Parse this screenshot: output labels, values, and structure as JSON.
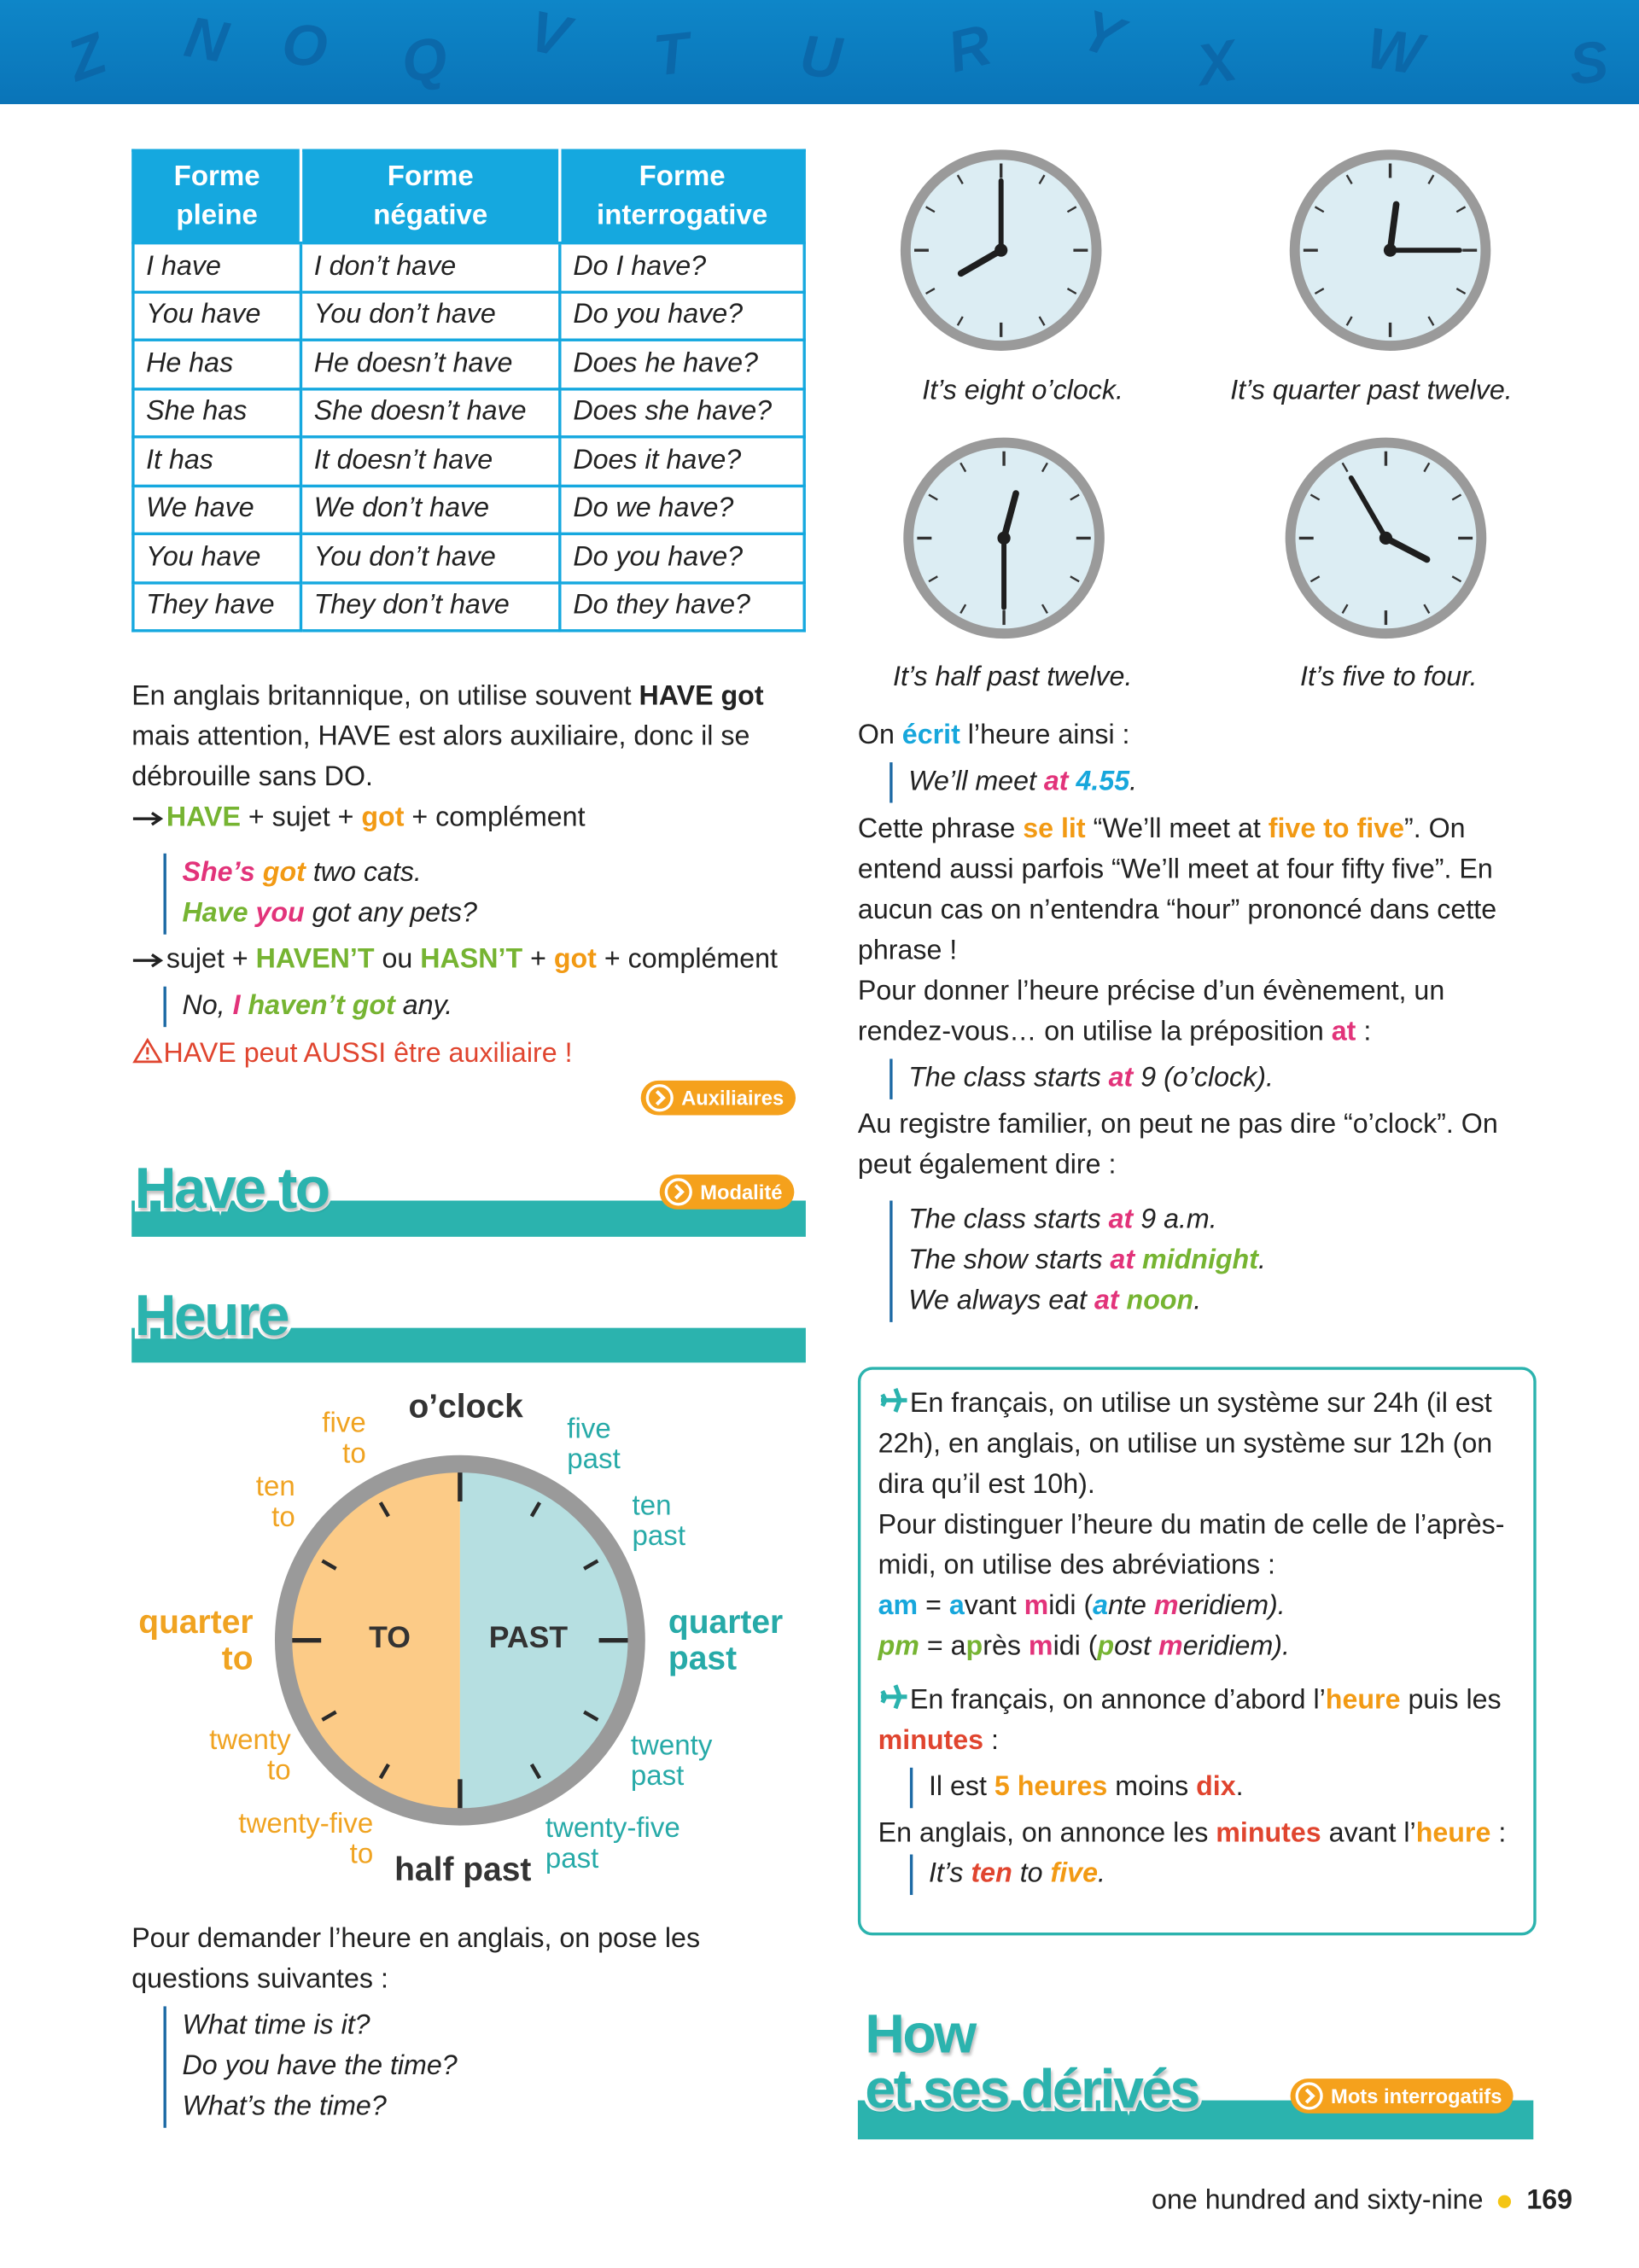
{
  "header_letters": [
    "Z",
    "N",
    "O",
    "Q",
    "V",
    "T",
    "U",
    "R",
    "Y",
    "X",
    "W",
    "S"
  ],
  "table": {
    "headers": [
      [
        "Forme",
        "pleine"
      ],
      [
        "Forme",
        "négative"
      ],
      [
        "Forme",
        "interrogative"
      ]
    ],
    "rows": [
      [
        "I have",
        "I don’t have",
        "Do I have?"
      ],
      [
        "You have",
        "You don’t have",
        "Do you have?"
      ],
      [
        "He has",
        "He doesn’t have",
        "Does he have?"
      ],
      [
        "She has",
        "She doesn’t have",
        "Does she have?"
      ],
      [
        "It has",
        "It doesn’t have",
        "Does it have?"
      ],
      [
        "We have",
        "We don’t have",
        "Do we have?"
      ],
      [
        "You have",
        "You don’t have",
        "Do you have?"
      ],
      [
        "They have",
        "They don’t have",
        "Do they have?"
      ]
    ]
  },
  "have_got": {
    "intro": [
      "En anglais britannique, on utilise souvent ",
      "HAVE got",
      " mais attention, HAVE est alors auxiliaire, donc il se débrouille sans DO."
    ],
    "rule_affirmative": [
      "HAVE",
      " + sujet + ",
      "got",
      " + complément"
    ],
    "examples_affirmative": [
      [
        "She’s ",
        "got",
        " two cats."
      ],
      [
        "Have ",
        "you",
        " got any pets?"
      ]
    ],
    "rule_negative": [
      "sujet + ",
      "HAVEN’T",
      " ou ",
      "HASN’T",
      " + ",
      "got",
      " + complément"
    ],
    "example_negative": [
      "No, ",
      "I ",
      "haven’t got",
      " any."
    ],
    "warning": "HAVE peut AUSSI être auxiliaire !",
    "link": "Auxiliaires"
  },
  "have_to": {
    "title": "Have to",
    "link": "Modalité"
  },
  "heure": {
    "title": "Heure",
    "diagram": {
      "top": "o’clock",
      "bottom": "half past",
      "left_half": "TO",
      "right_half": "PAST",
      "five_to": [
        "five",
        "to"
      ],
      "ten_to": [
        "ten",
        "to"
      ],
      "quarter_to": [
        "quarter",
        "to"
      ],
      "twenty_to": [
        "twenty",
        "to"
      ],
      "twenty_five_to": [
        "twenty-five",
        "to"
      ],
      "five_past": [
        "five",
        "past"
      ],
      "ten_past": [
        "ten",
        "past"
      ],
      "quarter_past": [
        "quarter",
        "past"
      ],
      "twenty_past": [
        "twenty",
        "past"
      ],
      "twenty_five_past": [
        "twenty-five",
        "past"
      ]
    },
    "questions_intro": "Pour demander l’heure en anglais, on pose les questions suivantes :",
    "questions": [
      "What time is it?",
      "Do you have the time?",
      "What’s the time?"
    ]
  },
  "clocks": {
    "captions": [
      "It’s eight o’clock.",
      "It’s quarter past twelve.",
      "It’s half past twelve.",
      "It’s five to four."
    ]
  },
  "writing": {
    "intro": [
      "On ",
      "écrit",
      " l’heure ainsi :"
    ],
    "example": [
      "We’ll meet ",
      "at ",
      "4.55",
      "."
    ],
    "reading": [
      "Cette phrase ",
      "se lit",
      " “We’ll meet at ",
      "five to five",
      "”. On entend aussi parfois “We’ll meet at four fifty five”. En aucun cas on n’entendra “hour” prononcé dans cette phrase !"
    ],
    "precise": [
      "Pour donner l’heure précise d’un évènement, un rendez-vous… on utilise la préposition ",
      "at",
      " :"
    ],
    "precise_example": [
      "The class starts ",
      "at",
      " 9 (o’clock)."
    ],
    "informal": "Au registre familier, on peut ne pas dire “o’clock”. On peut également dire :",
    "informal_examples": [
      [
        "The class starts ",
        "at",
        " 9 a.m."
      ],
      [
        "The show starts ",
        "at ",
        "midnight",
        "."
      ],
      [
        "We always eat ",
        "at ",
        "noon",
        "."
      ]
    ]
  },
  "box": {
    "system": "En français, on utilise un système sur 24h (il est 22h), en anglais, on utilise un système sur 12h (on dira qu’il est 10h).",
    "distinguish": "Pour distinguer l’heure du matin de celle de l’après-midi, on utilise des abréviations :",
    "am": [
      "am",
      " = ",
      "a",
      "vant ",
      "m",
      "idi (",
      "a",
      "nte ",
      "m",
      "eridiem)."
    ],
    "pm": [
      "pm",
      " = a",
      "p",
      "rès ",
      "m",
      "idi (",
      "p",
      "ost ",
      "m",
      "eridiem)."
    ],
    "order_fr": [
      "En français, on annonce d’abord l’",
      "heure",
      " puis les ",
      "minutes",
      " :"
    ],
    "example_fr": [
      "Il est ",
      "5 heures",
      " moins ",
      "dix",
      "."
    ],
    "order_en": [
      "En anglais, on annonce les ",
      "minutes",
      " avant l’",
      "heure",
      " :"
    ],
    "example_en": [
      "It’s ",
      "ten",
      " to ",
      "five",
      "."
    ]
  },
  "how": {
    "title_lines": [
      "How",
      "et ses dérivés"
    ],
    "link": "Mots interrogatifs"
  },
  "footer": {
    "words": "one hundred and sixty-nine",
    "page": "169"
  }
}
